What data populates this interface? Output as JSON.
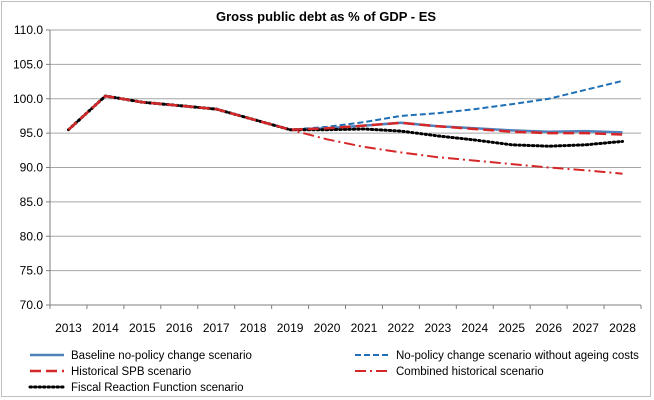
{
  "chart_data": {
    "type": "line",
    "title": "Gross public debt as % of GDP - ES",
    "xlabel": "",
    "ylabel": "",
    "x": [
      2013,
      2014,
      2015,
      2016,
      2017,
      2018,
      2019,
      2020,
      2021,
      2022,
      2023,
      2024,
      2025,
      2026,
      2027,
      2028
    ],
    "ylim": [
      70.0,
      110.0
    ],
    "yticks": [
      "70.0",
      "75.0",
      "80.0",
      "85.0",
      "90.0",
      "95.0",
      "100.0",
      "105.0",
      "110.0"
    ],
    "grid": "horizontal",
    "legend_position": "bottom",
    "series": [
      {
        "name": "Baseline no-policy change scenario",
        "style": "solid",
        "color": "#4f81bd",
        "values": [
          95.5,
          100.4,
          99.5,
          99.0,
          98.5,
          97.0,
          95.5,
          95.7,
          96.1,
          96.5,
          96.0,
          95.7,
          95.4,
          95.2,
          95.3,
          95.1
        ]
      },
      {
        "name": "No-policy change scenario without ageing costs",
        "style": "dashed",
        "color": "#1f6fb5",
        "values": [
          95.5,
          100.4,
          99.5,
          99.0,
          98.5,
          97.0,
          95.5,
          95.9,
          96.6,
          97.5,
          97.9,
          98.5,
          99.2,
          100.0,
          101.3,
          102.6
        ]
      },
      {
        "name": "Historical SPB scenario",
        "style": "longdash",
        "color": "#d62728",
        "values": [
          95.5,
          100.4,
          99.5,
          99.0,
          98.5,
          97.0,
          95.5,
          95.7,
          96.1,
          96.5,
          96.0,
          95.6,
          95.2,
          95.0,
          95.0,
          94.8
        ]
      },
      {
        "name": "Combined historical scenario",
        "style": "dashdot",
        "color": "#d62728",
        "values": [
          95.5,
          100.4,
          99.5,
          99.0,
          98.5,
          97.0,
          95.5,
          94.1,
          93.0,
          92.2,
          91.5,
          91.0,
          90.5,
          90.0,
          89.6,
          89.1
        ]
      },
      {
        "name": "Fiscal Reaction Function scenario",
        "style": "dotted",
        "color": "#000000",
        "values": [
          95.5,
          100.4,
          99.5,
          99.0,
          98.5,
          97.0,
          95.5,
          95.5,
          95.6,
          95.3,
          94.6,
          94.0,
          93.3,
          93.1,
          93.3,
          93.8
        ]
      }
    ]
  }
}
